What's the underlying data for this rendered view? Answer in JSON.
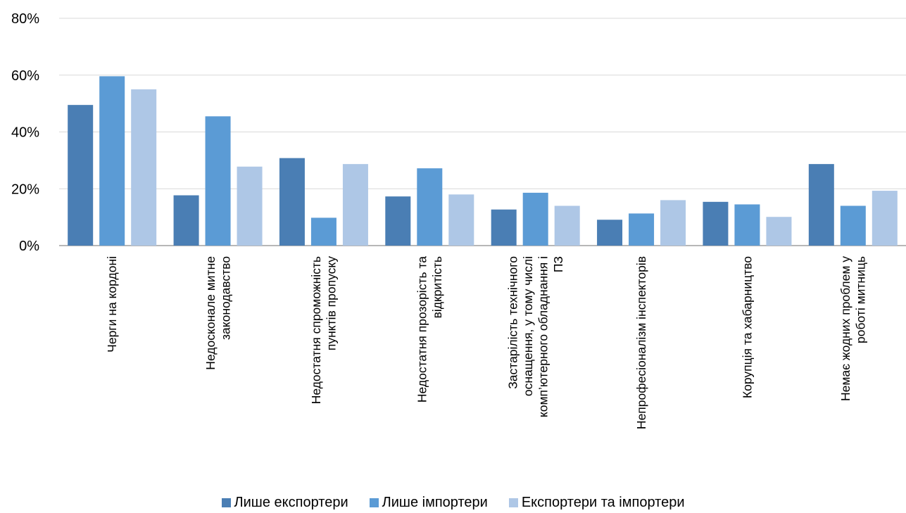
{
  "chart_data": {
    "type": "bar",
    "title": "",
    "xlabel": "",
    "ylabel": "",
    "ylim": [
      0,
      80
    ],
    "y_ticks": [
      "0%",
      "20%",
      "40%",
      "60%",
      "80%"
    ],
    "y_tick_values": [
      0,
      20,
      40,
      60,
      80
    ],
    "grid": true,
    "legend_position": "bottom",
    "categories": [
      [
        "Черги на кордоні"
      ],
      [
        "Недосконале митне",
        "законодавство"
      ],
      [
        "Недостатня спроможність",
        "пунктів пропуску"
      ],
      [
        "Недостатня прозорість та",
        "відкритість"
      ],
      [
        "Застарілість технічного",
        "оснащення, у тому числі",
        "комп’ютерного обладнання і",
        "ПЗ"
      ],
      [
        "Непрофесіоналізм інспекторів"
      ],
      [
        "Корупція та хабарництво"
      ],
      [
        "Немає жодних проблем у",
        "роботі митниць"
      ]
    ],
    "series": [
      {
        "name": "Лише експортери",
        "color": "#4a7eb4",
        "values": [
          49.5,
          17.7,
          30.8,
          17.3,
          12.7,
          9.1,
          15.4,
          28.7
        ]
      },
      {
        "name": "Лише імпортери",
        "color": "#5b9bd5",
        "values": [
          59.6,
          45.5,
          9.8,
          27.2,
          18.6,
          11.3,
          14.5,
          14.0
        ]
      },
      {
        "name": "Експортери та імпортери",
        "color": "#aec7e6",
        "values": [
          55.0,
          27.8,
          28.7,
          18.0,
          14.0,
          16.0,
          10.1,
          19.3
        ]
      }
    ]
  }
}
